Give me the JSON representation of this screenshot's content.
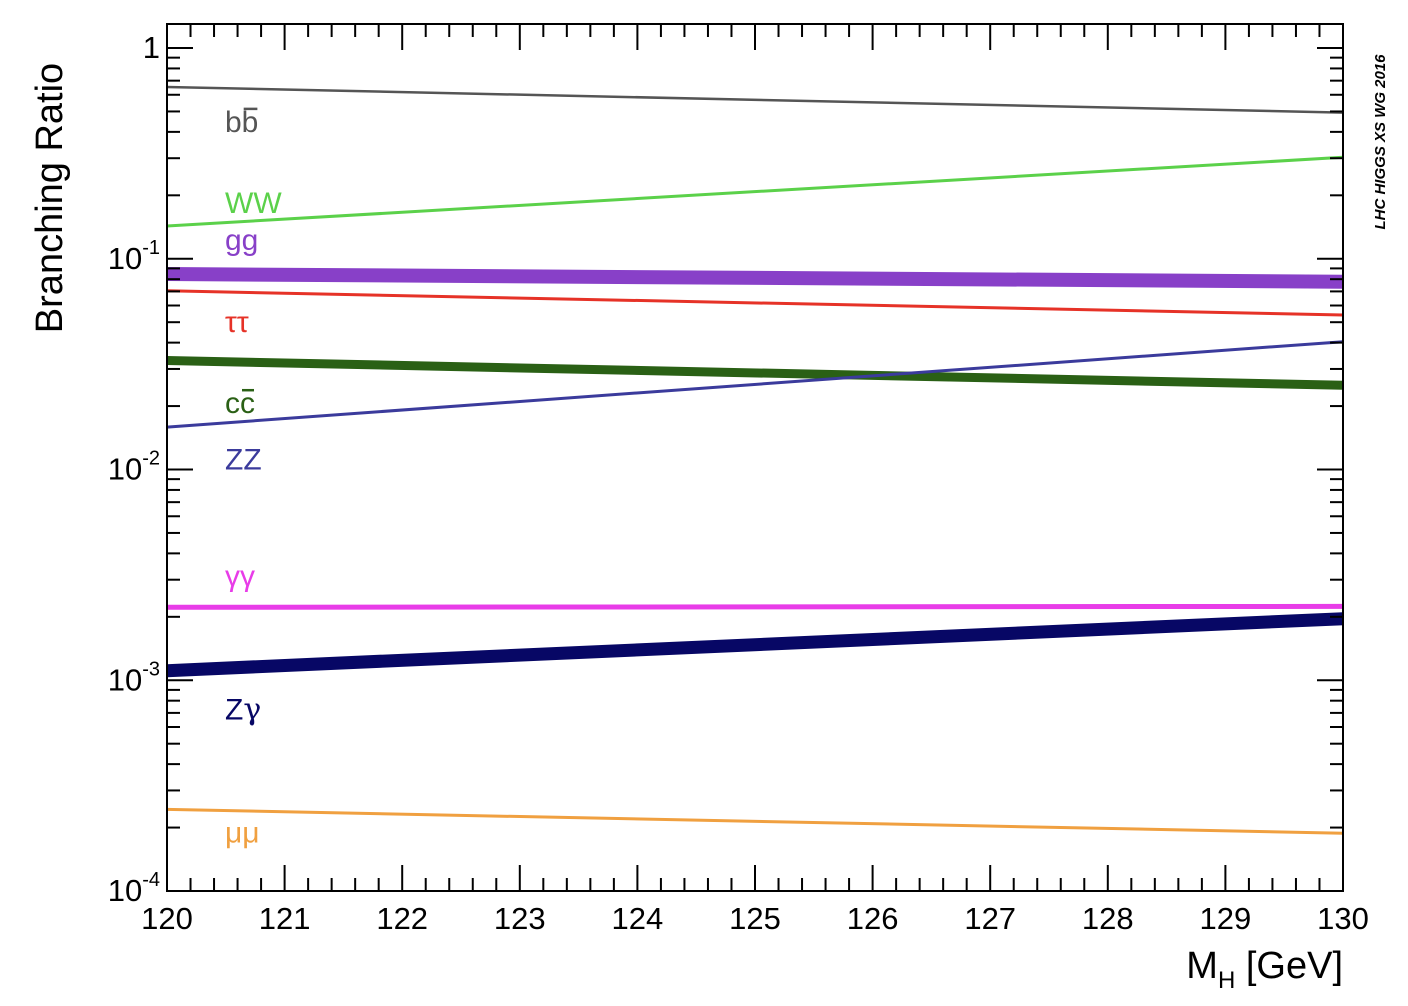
{
  "chart_data": {
    "type": "line",
    "xlabel": "M",
    "xlabel_subscript": "H",
    "xlabel_unit": "[GeV]",
    "ylabel": "Branching Ratio",
    "yscale": "log",
    "xlim": [
      120,
      130
    ],
    "ylim": [
      0.0001,
      1.3
    ],
    "x_ticks": [
      "120",
      "121",
      "122",
      "123",
      "124",
      "125",
      "126",
      "127",
      "128",
      "129",
      "130"
    ],
    "y_ticks": [
      {
        "value": 1,
        "base": "1",
        "exponent": ""
      },
      {
        "value": 0.1,
        "base": "10",
        "exponent": "-1"
      },
      {
        "value": 0.01,
        "base": "10",
        "exponent": "-2"
      },
      {
        "value": 0.001,
        "base": "10",
        "exponent": "-3"
      },
      {
        "value": 0.0001,
        "base": "10",
        "exponent": "-4"
      }
    ],
    "grid": false,
    "watermark": "LHC HIGGS XS WG 2016",
    "series": [
      {
        "name": "bb",
        "bar_on": "b",
        "color": "#555555",
        "width": 2.5,
        "x": [
          120,
          130
        ],
        "values": [
          0.653,
          0.494
        ],
        "label_value": 0.4
      },
      {
        "name": "WW",
        "color": "#5bd14a",
        "width": 3,
        "x": [
          120,
          130
        ],
        "values": [
          0.143,
          0.303
        ],
        "label_value": 0.165
      },
      {
        "name": "gg",
        "color": "#8840c8",
        "width": 14,
        "x": [
          120,
          130
        ],
        "values": [
          0.0847,
          0.0778
        ],
        "label_value": 0.11
      },
      {
        "name": "ττ",
        "color": "#e63227",
        "width": 3,
        "x": [
          120,
          130
        ],
        "values": [
          0.0705,
          0.0541
        ],
        "label_value": 0.045,
        "greek": true
      },
      {
        "name": "cc",
        "bar_on": "c",
        "color": "#2a6015",
        "width": 9,
        "x": [
          120,
          130
        ],
        "values": [
          0.0329,
          0.0251
        ],
        "label_value": 0.0185
      },
      {
        "name": "ZZ",
        "color": "#3b3b9c",
        "width": 3,
        "x": [
          120,
          130
        ],
        "values": [
          0.0159,
          0.0404
        ],
        "label_value": 0.01
      },
      {
        "name": "γγ",
        "color": "#e83ce8",
        "width": 5,
        "x": [
          120,
          130
        ],
        "values": [
          0.00222,
          0.00224
        ],
        "label_value": 0.0028,
        "greek": true
      },
      {
        "name": "Zγ",
        "color": "#070765",
        "width": 13,
        "x": [
          120,
          130
        ],
        "values": [
          0.00111,
          0.00196
        ],
        "label_value": 0.00065,
        "mixed_greek": true
      },
      {
        "name": "μμ",
        "color": "#f0a040",
        "width": 3,
        "x": [
          120,
          130
        ],
        "values": [
          0.000244,
          0.000188
        ],
        "label_value": 0.00017,
        "greek": true
      }
    ]
  }
}
